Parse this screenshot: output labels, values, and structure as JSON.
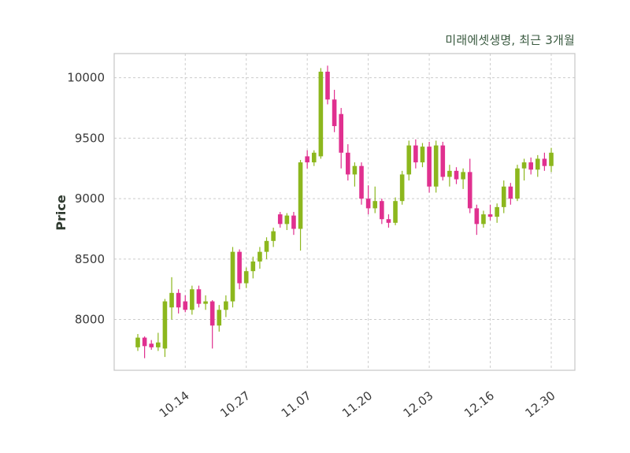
{
  "chart_data": {
    "type": "candlestick",
    "title": "미래에셋생명, 최근 3개월",
    "ylabel": "Price",
    "xlabel": "",
    "ylim": [
      7580,
      10200
    ],
    "y_ticks": [
      8000,
      8500,
      9000,
      9500,
      10000
    ],
    "x_ticks": [
      {
        "label": "10.14",
        "index": 7
      },
      {
        "label": "10.27",
        "index": 16
      },
      {
        "label": "11.07",
        "index": 25
      },
      {
        "label": "11.20",
        "index": 34
      },
      {
        "label": "12.03",
        "index": 43
      },
      {
        "label": "12.16",
        "index": 52
      },
      {
        "label": "12.30",
        "index": 61
      }
    ],
    "up_color": "#8cb71d",
    "down_color": "#e0308f",
    "title_color": "#3a5a40",
    "grid": true,
    "legend": "none",
    "candles_format": [
      "open",
      "high",
      "low",
      "close"
    ],
    "candles": [
      [
        7770,
        7880,
        7740,
        7850
      ],
      [
        7850,
        7860,
        7680,
        7780
      ],
      [
        7800,
        7830,
        7750,
        7770
      ],
      [
        7770,
        7890,
        7740,
        7810
      ],
      [
        7760,
        8170,
        7690,
        8150
      ],
      [
        8100,
        8350,
        8000,
        8220
      ],
      [
        8220,
        8250,
        8050,
        8100
      ],
      [
        8150,
        8200,
        8060,
        8080
      ],
      [
        8080,
        8280,
        8040,
        8250
      ],
      [
        8250,
        8280,
        8100,
        8130
      ],
      [
        8130,
        8200,
        8080,
        8150
      ],
      [
        8150,
        8160,
        7760,
        7950
      ],
      [
        7950,
        8120,
        7900,
        8080
      ],
      [
        8080,
        8200,
        8020,
        8150
      ],
      [
        8150,
        8600,
        8100,
        8560
      ],
      [
        8560,
        8580,
        8250,
        8300
      ],
      [
        8300,
        8430,
        8260,
        8400
      ],
      [
        8400,
        8520,
        8340,
        8480
      ],
      [
        8480,
        8600,
        8420,
        8560
      ],
      [
        8560,
        8680,
        8500,
        8650
      ],
      [
        8650,
        8760,
        8600,
        8730
      ],
      [
        8870,
        8890,
        8760,
        8790
      ],
      [
        8790,
        8880,
        8740,
        8860
      ],
      [
        8860,
        8890,
        8700,
        8750
      ],
      [
        8750,
        9320,
        8570,
        9300
      ],
      [
        9350,
        9400,
        9250,
        9300
      ],
      [
        9300,
        9400,
        9270,
        9380
      ],
      [
        9350,
        10080,
        9330,
        10050
      ],
      [
        10050,
        10100,
        9780,
        9820
      ],
      [
        9820,
        9900,
        9550,
        9600
      ],
      [
        9700,
        9750,
        9250,
        9380
      ],
      [
        9380,
        9450,
        9150,
        9200
      ],
      [
        9200,
        9300,
        9100,
        9270
      ],
      [
        9270,
        9300,
        8950,
        9000
      ],
      [
        9000,
        9110,
        8870,
        8920
      ],
      [
        8920,
        9100,
        8880,
        8980
      ],
      [
        8980,
        9000,
        8790,
        8830
      ],
      [
        8830,
        8870,
        8760,
        8800
      ],
      [
        8800,
        9010,
        8780,
        8980
      ],
      [
        8980,
        9230,
        8950,
        9200
      ],
      [
        9200,
        9480,
        9150,
        9440
      ],
      [
        9440,
        9490,
        9250,
        9300
      ],
      [
        9300,
        9460,
        9260,
        9430
      ],
      [
        9430,
        9470,
        9050,
        9100
      ],
      [
        9100,
        9480,
        9050,
        9440
      ],
      [
        9440,
        9470,
        9150,
        9180
      ],
      [
        9180,
        9280,
        9100,
        9230
      ],
      [
        9230,
        9260,
        9120,
        9160
      ],
      [
        9160,
        9250,
        9080,
        9220
      ],
      [
        9220,
        9330,
        8880,
        8920
      ],
      [
        8920,
        8950,
        8700,
        8790
      ],
      [
        8790,
        8900,
        8760,
        8870
      ],
      [
        8870,
        8950,
        8820,
        8850
      ],
      [
        8850,
        8960,
        8800,
        8930
      ],
      [
        8930,
        9150,
        8880,
        9100
      ],
      [
        9100,
        9130,
        8950,
        9000
      ],
      [
        9000,
        9280,
        8980,
        9250
      ],
      [
        9250,
        9330,
        9150,
        9300
      ],
      [
        9300,
        9340,
        9200,
        9240
      ],
      [
        9240,
        9360,
        9180,
        9330
      ],
      [
        9330,
        9380,
        9230,
        9270
      ],
      [
        9270,
        9420,
        9220,
        9380
      ]
    ]
  }
}
